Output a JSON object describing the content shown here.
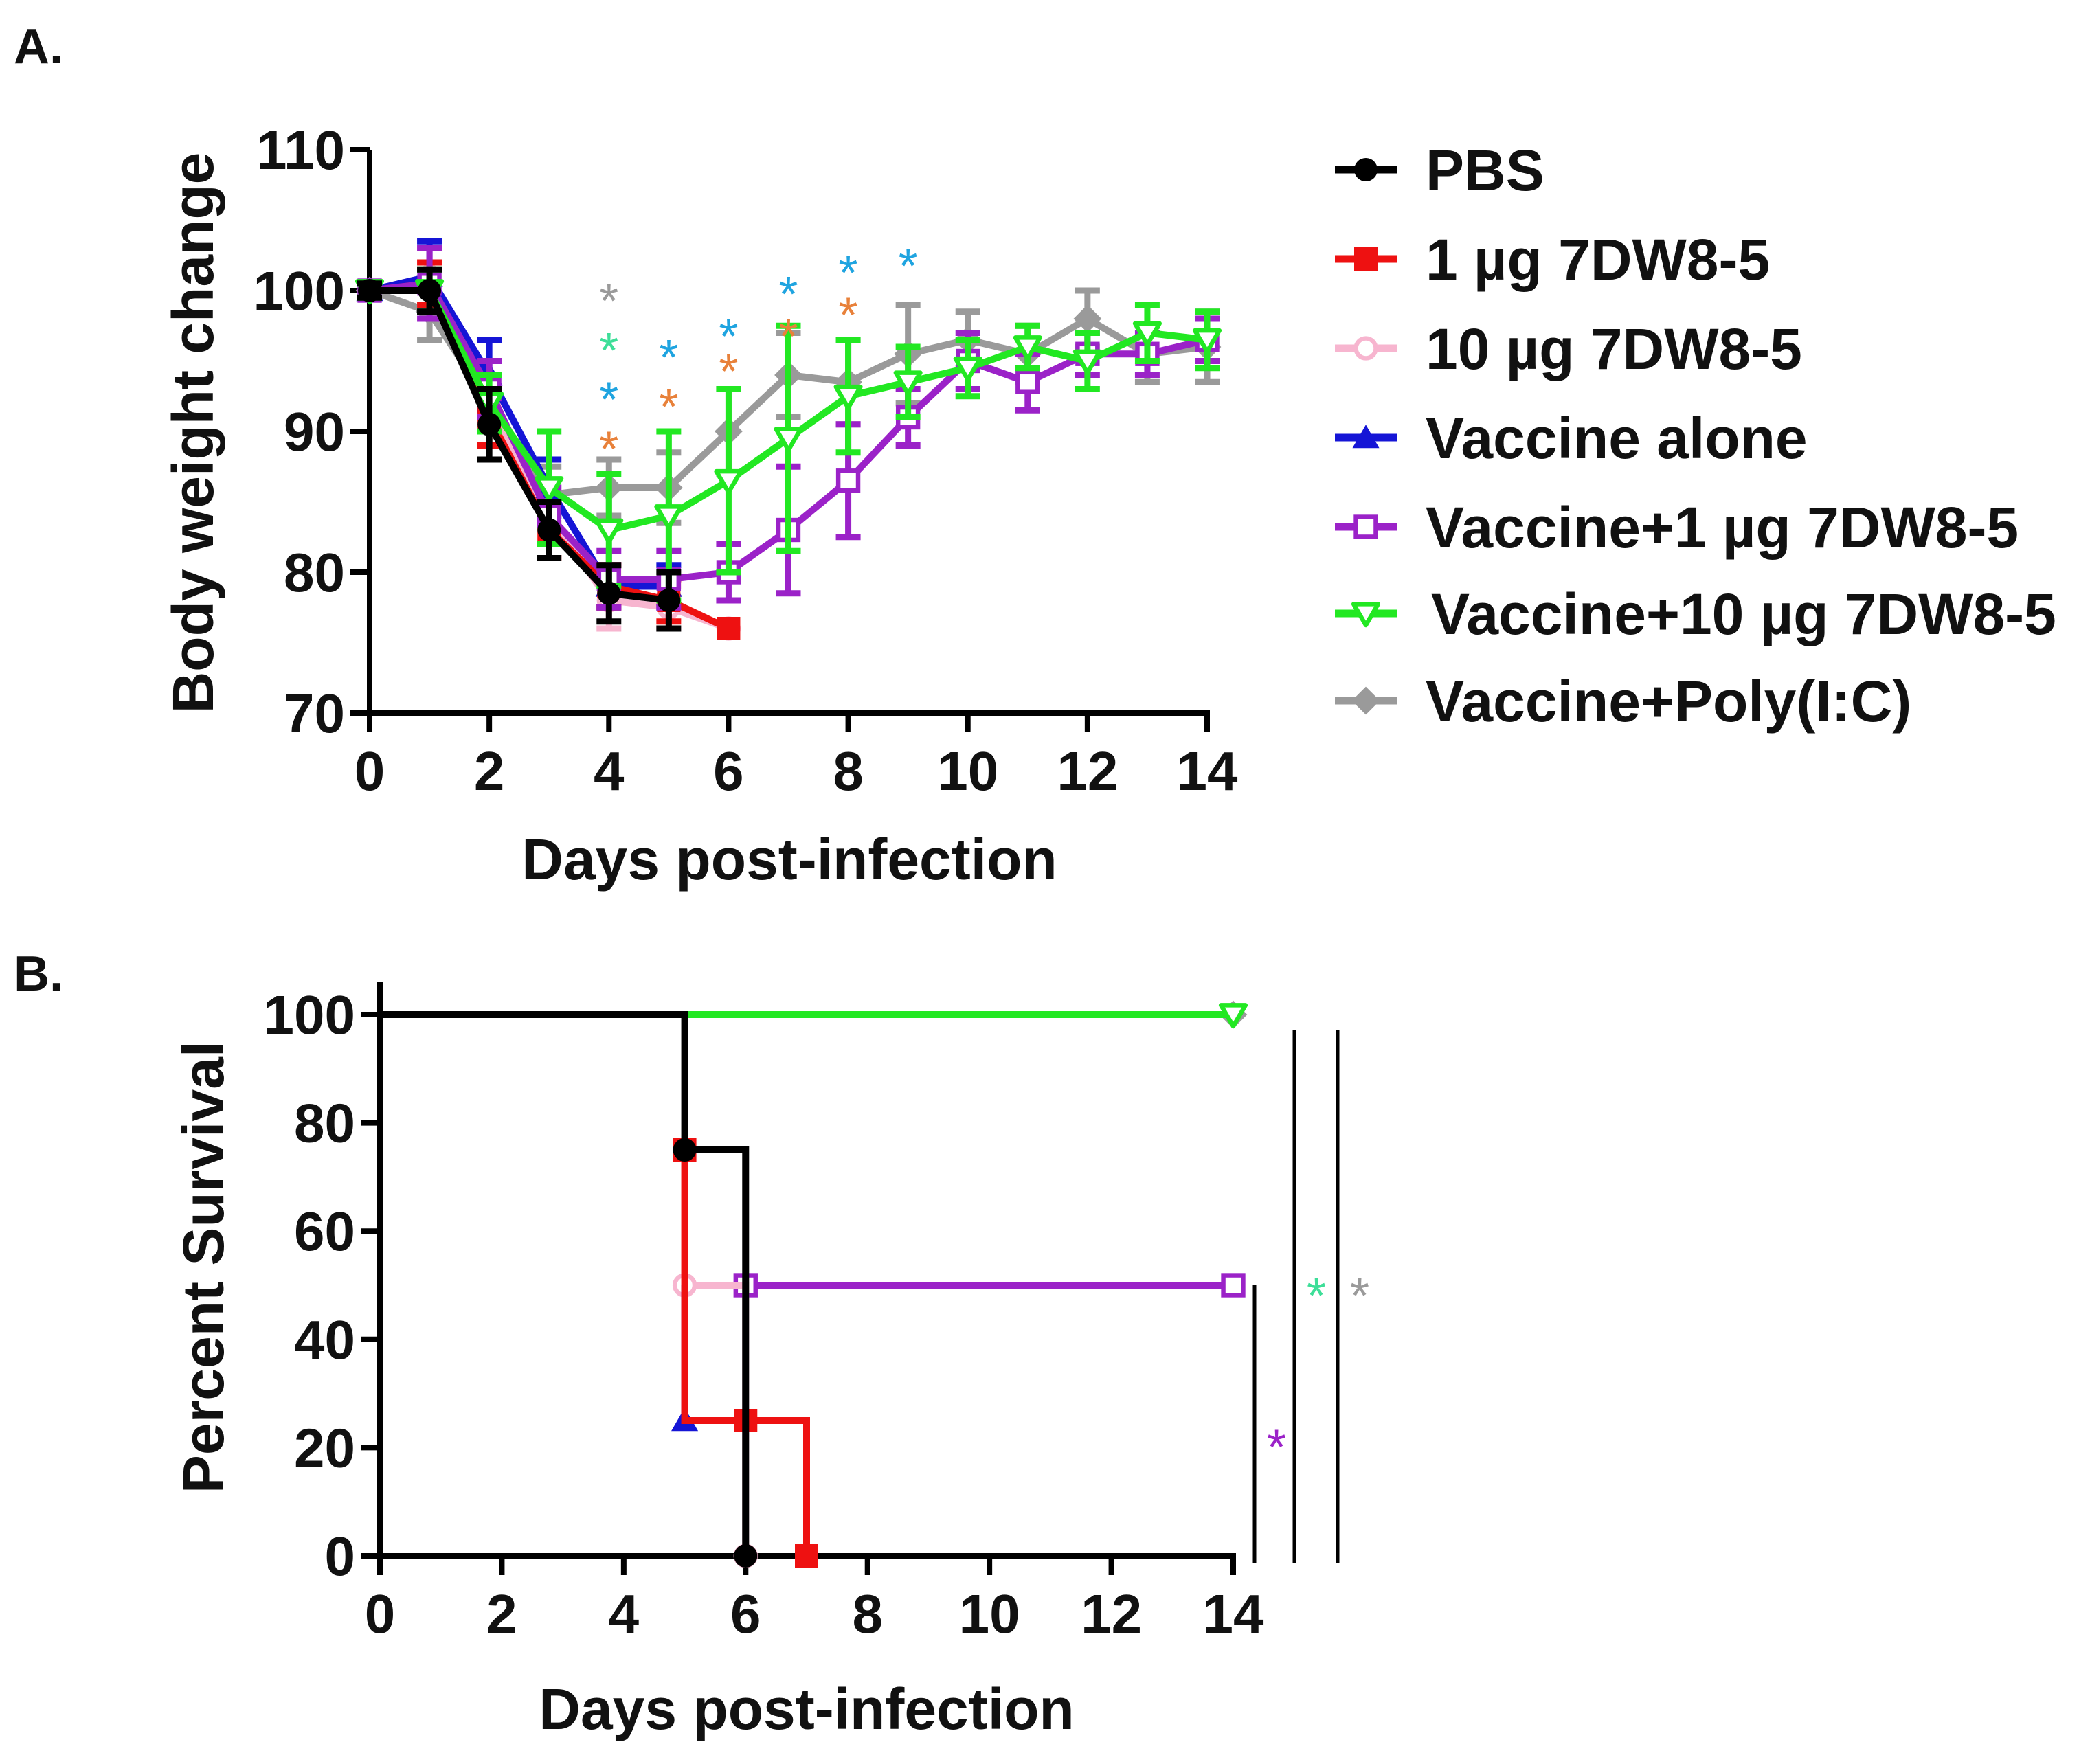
{
  "colors": {
    "pbs": "#000000",
    "mab1": "#ee1111",
    "mab10": "#f7b5cf",
    "vaccine_alone": "#1515d6",
    "vaccine_mab1": "#9b22c8",
    "vaccine_mab10": "#22e822",
    "vaccine_polyic": "#9a9a9a",
    "star_orange": "#e8813a",
    "star_blue": "#1fa4e0",
    "star_teal": "#3dde98",
    "star_gray": "#9a9a9a",
    "star_purple": "#9b22c8"
  },
  "legend": [
    {
      "key": "pbs",
      "label": "PBS",
      "marker": "circle-filled"
    },
    {
      "key": "mab1",
      "label": "1 µg 7DW8-5",
      "marker": "square-filled"
    },
    {
      "key": "mab10",
      "label": "10 µg 7DW8-5",
      "marker": "circle-open"
    },
    {
      "key": "vaccine_alone",
      "label": "Vaccine alone",
      "marker": "triangle-up-filled"
    },
    {
      "key": "vaccine_mab1",
      "label": "Vaccine+1 µg 7DW8-5",
      "marker": "square-open"
    },
    {
      "key": "vaccine_mab10",
      "label": "Vaccine+10 µg 7DW8-5",
      "marker": "triangle-down-open"
    },
    {
      "key": "vaccine_polyic",
      "label": "Vaccine+Poly(I:C)",
      "marker": "diamond-filled"
    }
  ],
  "chart_data": [
    {
      "panel": "A.",
      "type": "line",
      "title": "",
      "xlabel": "Days post-infection",
      "ylabel": "Body weight change",
      "xlim": [
        0,
        14
      ],
      "ylim": [
        70,
        110
      ],
      "xticks": [
        0,
        2,
        4,
        6,
        8,
        10,
        12,
        14
      ],
      "yticks": [
        70,
        80,
        90,
        100,
        110
      ],
      "grid": false,
      "legend_position": "right",
      "series": [
        {
          "key": "vaccine_polyic",
          "name": "Vaccine+Poly(I:C)",
          "x": [
            0,
            1,
            2,
            3,
            4,
            5,
            6,
            7,
            8,
            9,
            10,
            11,
            12,
            13,
            14
          ],
          "y": [
            100,
            98.5,
            92,
            85.5,
            86,
            86,
            90,
            94,
            93.5,
            95.5,
            96.5,
            95.5,
            98,
            95.5,
            96
          ],
          "err": [
            0.5,
            2,
            2,
            2,
            2,
            2.5,
            3,
            3,
            3,
            3.5,
            2,
            2,
            2,
            2,
            2.5
          ]
        },
        {
          "key": "mab10",
          "name": "10 µg 7DW8-5",
          "x": [
            0,
            1,
            2,
            3,
            4,
            5,
            6
          ],
          "y": [
            100,
            101,
            92,
            84,
            78,
            77.5,
            76
          ],
          "err": [
            0.5,
            2,
            2,
            2,
            2,
            1.5,
            0
          ]
        },
        {
          "key": "vaccine_alone",
          "name": "Vaccine alone",
          "x": [
            0,
            1,
            2,
            3,
            4,
            5
          ],
          "y": [
            100,
            101,
            94,
            86,
            79,
            79
          ],
          "err": [
            0.5,
            2.5,
            2.5,
            2,
            1.5,
            1.5
          ]
        },
        {
          "key": "mab1",
          "name": "1 µg 7DW8-5",
          "x": [
            0,
            1,
            2,
            3,
            4,
            5,
            6
          ],
          "y": [
            100,
            100.5,
            91,
            83,
            79,
            78,
            76
          ],
          "err": [
            0.5,
            1.5,
            2,
            2,
            1.5,
            1.5,
            0
          ]
        },
        {
          "key": "vaccine_mab1",
          "name": "Vaccine+1 µg 7DW8-5",
          "x": [
            0,
            1,
            2,
            3,
            4,
            5,
            6,
            7,
            8,
            9,
            10,
            11,
            12,
            13,
            14
          ],
          "y": [
            100,
            100.5,
            93,
            84,
            79.5,
            79.5,
            80,
            83,
            86.5,
            91,
            95,
            93.5,
            95.5,
            95.5,
            96.5
          ],
          "err": [
            0.5,
            2.5,
            2,
            2,
            2,
            2,
            2,
            4.5,
            4,
            2,
            2,
            2,
            1.5,
            1.5,
            1.5
          ]
        },
        {
          "key": "vaccine_mab10",
          "name": "Vaccine+10 µg 7DW8-5",
          "x": [
            0,
            1,
            2,
            3,
            4,
            5,
            6,
            7,
            8,
            9,
            10,
            11,
            12,
            13,
            14
          ],
          "y": [
            100,
            100,
            92,
            86,
            83,
            84,
            86.5,
            89.5,
            92.5,
            93.5,
            94.5,
            96,
            95,
            97,
            96.5
          ],
          "err": [
            0.5,
            1.5,
            2,
            4,
            4,
            6,
            6.5,
            8,
            4,
            2.5,
            2,
            1.5,
            2,
            2,
            2
          ]
        },
        {
          "key": "pbs",
          "name": "PBS",
          "x": [
            0,
            1,
            2,
            3,
            4,
            5
          ],
          "y": [
            100,
            100,
            90.5,
            83,
            78.5,
            78
          ],
          "err": [
            0.5,
            1.5,
            2.5,
            2,
            2,
            2
          ]
        }
      ],
      "annotations": [
        {
          "x": 4,
          "y": 100,
          "text": "*",
          "color_key": "star_gray"
        },
        {
          "x": 4,
          "y": 96.5,
          "text": "*",
          "color_key": "star_teal"
        },
        {
          "x": 4,
          "y": 93,
          "text": "*",
          "color_key": "star_blue"
        },
        {
          "x": 4,
          "y": 89.5,
          "text": "*",
          "color_key": "star_orange"
        },
        {
          "x": 5,
          "y": 96,
          "text": "*",
          "color_key": "star_blue"
        },
        {
          "x": 5,
          "y": 92.5,
          "text": "*",
          "color_key": "star_orange"
        },
        {
          "x": 6,
          "y": 97.5,
          "text": "*",
          "color_key": "star_blue"
        },
        {
          "x": 6,
          "y": 95,
          "text": "*",
          "color_key": "star_orange"
        },
        {
          "x": 7,
          "y": 100.5,
          "text": "*",
          "color_key": "star_blue"
        },
        {
          "x": 7,
          "y": 97.5,
          "text": "*",
          "color_key": "star_orange"
        },
        {
          "x": 8,
          "y": 102,
          "text": "*",
          "color_key": "star_blue"
        },
        {
          "x": 8,
          "y": 99,
          "text": "*",
          "color_key": "star_orange"
        },
        {
          "x": 9,
          "y": 102.5,
          "text": "*",
          "color_key": "star_blue"
        }
      ]
    },
    {
      "panel": "B.",
      "type": "line",
      "subtype": "kaplan-meier",
      "title": "",
      "xlabel": "Days post-infection",
      "ylabel": "Percent Survival",
      "xlim": [
        0,
        14
      ],
      "ylim": [
        0,
        100
      ],
      "xticks": [
        0,
        2,
        4,
        6,
        8,
        10,
        12,
        14
      ],
      "yticks": [
        0,
        20,
        40,
        60,
        80,
        100
      ],
      "grid": false,
      "series": [
        {
          "key": "vaccine_polyic",
          "name": "Vaccine+Poly(I:C)",
          "x": [
            0,
            14
          ],
          "y": [
            100,
            100
          ],
          "markers": [
            [
              14,
              100
            ]
          ]
        },
        {
          "key": "vaccine_mab10",
          "name": "Vaccine+10 µg 7DW8-5",
          "x": [
            5,
            14
          ],
          "y": [
            100,
            100
          ],
          "markers": [
            [
              14,
              100
            ]
          ]
        },
        {
          "key": "vaccine_mab1",
          "name": "Vaccine+1 µg 7DW8-5",
          "x": [
            5,
            14
          ],
          "y": [
            50,
            50
          ],
          "markers": [
            [
              6,
              50
            ],
            [
              14,
              50
            ]
          ]
        },
        {
          "key": "mab10",
          "name": "10 µg 7DW8-5",
          "x": [
            5,
            5,
            5,
            6,
            6
          ],
          "y": [
            75,
            50,
            50,
            50,
            0
          ],
          "markers": [
            [
              5,
              75
            ],
            [
              5,
              50
            ],
            [
              6,
              0
            ]
          ]
        },
        {
          "key": "vaccine_alone",
          "name": "Vaccine alone",
          "x": [
            5,
            5,
            6
          ],
          "y": [
            50,
            25,
            25
          ],
          "markers": [
            [
              5,
              25
            ]
          ]
        },
        {
          "key": "mab1",
          "name": "1 µg 7DW8-5",
          "x": [
            5,
            5,
            6,
            7,
            7
          ],
          "y": [
            75,
            25,
            25,
            25,
            0
          ],
          "markers": [
            [
              5,
              75
            ],
            [
              6,
              25
            ],
            [
              7,
              0
            ]
          ]
        },
        {
          "key": "pbs",
          "name": "PBS",
          "x": [
            0,
            5,
            5,
            6,
            6
          ],
          "y": [
            100,
            100,
            75,
            75,
            0
          ],
          "markers": [
            [
              5,
              75
            ],
            [
              6,
              0
            ]
          ]
        }
      ],
      "significance": [
        {
          "text": "*",
          "color_key": "star_purple",
          "y_from": 0,
          "y_to": 50
        },
        {
          "text": "*",
          "color_key": "star_teal",
          "y_from": 0,
          "y_to": 96
        },
        {
          "text": "*",
          "color_key": "star_gray",
          "y_from": 0,
          "y_to": 96
        }
      ]
    }
  ]
}
